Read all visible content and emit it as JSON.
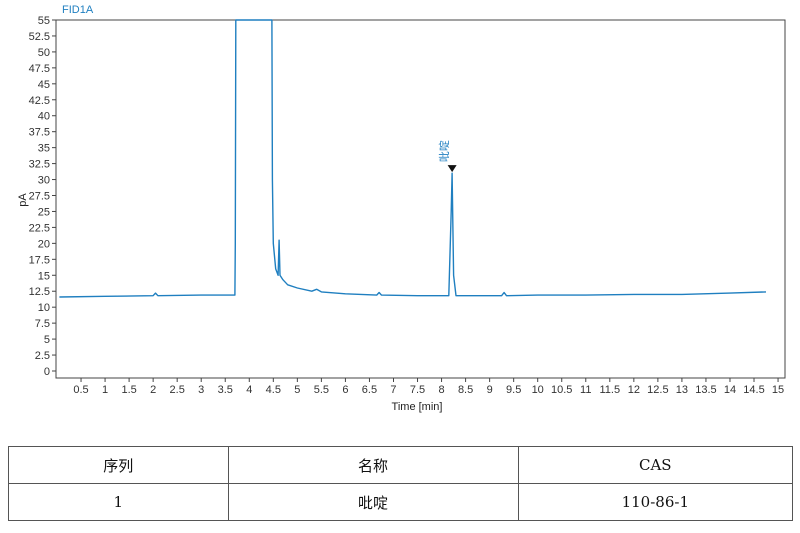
{
  "chart_data": {
    "type": "line",
    "title": "FID1A",
    "xlabel": "Time [min]",
    "ylabel": "pA",
    "xlim": [
      0,
      15
    ],
    "ylim": [
      0,
      55
    ],
    "xticks": [
      "0.5",
      "1",
      "1.5",
      "2",
      "2.5",
      "3",
      "3.5",
      "4",
      "4.5",
      "5",
      "5.5",
      "6",
      "6.5",
      "7",
      "7.5",
      "8",
      "8.5",
      "9",
      "9.5",
      "10",
      "10.5",
      "11",
      "11.5",
      "12",
      "12.5",
      "13",
      "13.5",
      "14",
      "14.5",
      "15"
    ],
    "yticks": [
      "0",
      "2.5",
      "5",
      "7.5",
      "10",
      "12.5",
      "15",
      "17.5",
      "20",
      "22.5",
      "25",
      "27.5",
      "30",
      "32.5",
      "35",
      "37.5",
      "40",
      "42.5",
      "45",
      "47.5",
      "50",
      "52.5",
      "55"
    ],
    "series": [
      {
        "color": "#1f7fc0",
        "x": [
          0.05,
          1.0,
          2.0,
          2.05,
          2.1,
          3.0,
          3.7,
          3.71,
          3.72,
          4.47,
          4.48,
          4.5,
          4.55,
          4.6,
          4.62,
          4.64,
          4.7,
          4.8,
          5.0,
          5.3,
          5.4,
          5.5,
          6.0,
          6.65,
          6.7,
          6.75,
          7.5,
          8.15,
          8.2,
          8.22,
          8.25,
          8.3,
          9.25,
          9.3,
          9.35,
          10.0,
          11.0,
          12.0,
          13.0,
          14.0,
          14.75
        ],
        "y": [
          11.6,
          11.7,
          11.8,
          12.2,
          11.8,
          11.9,
          11.9,
          20,
          55,
          55,
          30,
          20,
          16,
          15,
          20.5,
          15,
          14.3,
          13.5,
          13.0,
          12.5,
          12.8,
          12.4,
          12.1,
          11.9,
          12.3,
          11.9,
          11.8,
          11.8,
          25,
          31,
          15,
          11.8,
          11.8,
          12.3,
          11.8,
          11.9,
          11.9,
          12.0,
          12.0,
          12.2,
          12.4
        ]
      }
    ],
    "peak": {
      "x": 8.22,
      "y": 31,
      "label": "吡啶"
    },
    "grid": false
  },
  "table": {
    "headers": [
      "序列",
      "名称",
      "CAS"
    ],
    "rows": [
      [
        "1",
        "吡啶",
        "110-86-1"
      ]
    ]
  }
}
